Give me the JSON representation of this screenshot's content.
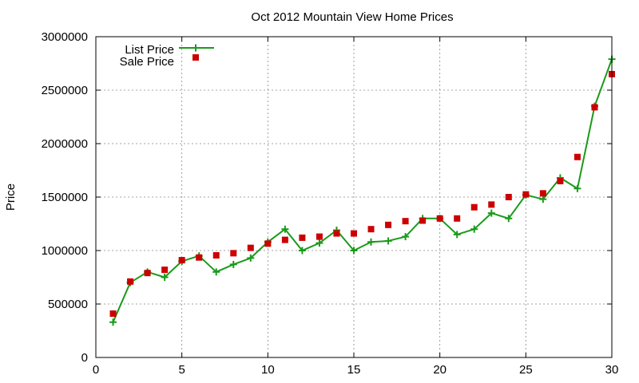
{
  "chart_data": {
    "type": "line",
    "title": "Oct 2012 Mountain View Home Prices",
    "xlabel": "",
    "ylabel": "Price",
    "xlim": [
      0,
      30
    ],
    "ylim": [
      0,
      3000000
    ],
    "xticks": [
      "0",
      "5",
      "10",
      "15",
      "20",
      "25",
      "30"
    ],
    "yticks": [
      "0",
      "500000",
      "1000000",
      "1500000",
      "2000000",
      "2500000",
      "3000000"
    ],
    "grid": true,
    "legend_position": "top-left",
    "x": [
      1,
      2,
      3,
      4,
      5,
      6,
      7,
      8,
      9,
      10,
      11,
      12,
      13,
      14,
      15,
      16,
      17,
      18,
      19,
      20,
      21,
      22,
      23,
      24,
      25,
      26,
      27,
      28,
      29,
      30
    ],
    "series": [
      {
        "name": "List Price",
        "style": "linespoints",
        "marker": "plus",
        "color": "#1a9a1a",
        "values": [
          330000,
          700000,
          800000,
          750000,
          900000,
          950000,
          800000,
          870000,
          930000,
          1080000,
          1200000,
          1000000,
          1070000,
          1190000,
          1000000,
          1080000,
          1090000,
          1130000,
          1300000,
          1300000,
          1150000,
          1200000,
          1350000,
          1300000,
          1520000,
          1480000,
          1680000,
          1580000,
          2350000,
          2790000
        ]
      },
      {
        "name": "Sale Price",
        "style": "points",
        "marker": "square",
        "color": "#cc0000",
        "values": [
          410000,
          710000,
          790000,
          820000,
          910000,
          935000,
          955000,
          975000,
          1025000,
          1065000,
          1100000,
          1120000,
          1130000,
          1160000,
          1160000,
          1200000,
          1240000,
          1275000,
          1280000,
          1300000,
          1300000,
          1405000,
          1430000,
          1500000,
          1525000,
          1535000,
          1650000,
          1875000,
          2340000,
          2650000
        ]
      }
    ]
  }
}
